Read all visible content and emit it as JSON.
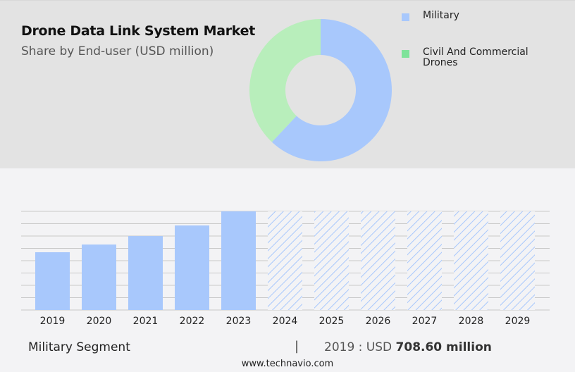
{
  "header": {
    "title": "Drone Data Link System Market",
    "subtitle": "Share by End-user (USD million)"
  },
  "legend": {
    "items": [
      {
        "label": "Military",
        "color": "#a8c8fc"
      },
      {
        "label": "Civil And Commercial Drones",
        "label_line1": "Civil And Commercial",
        "label_line2": "Drones",
        "color": "#7ee39a"
      }
    ]
  },
  "footer": {
    "segment_label": "Military Segment",
    "separator": "|",
    "value_prefix": "2019 : USD ",
    "value_bold": "708.60 million",
    "url": "www.technavio.com"
  },
  "colors": {
    "military": "#a8c8fc",
    "civil": "#b8eebb",
    "civil_legend": "#7ee39a",
    "top_bg": "#e3e3e3",
    "bottom_bg": "#f3f3f5",
    "gridline": "#c8c8c8"
  },
  "chart_data": [
    {
      "type": "pie",
      "title": "Drone Data Link System Market",
      "subtitle": "Share by End-user (USD million)",
      "donut": true,
      "categories": [
        "Military",
        "Civil And Commercial Drones"
      ],
      "values": [
        62,
        38
      ],
      "unit": "percent (estimated)",
      "legend_position": "right"
    },
    {
      "type": "bar",
      "title": "Military Segment",
      "categories": [
        "2019",
        "2020",
        "2021",
        "2022",
        "2023",
        "2024",
        "2025",
        "2026",
        "2027",
        "2028",
        "2029"
      ],
      "values": [
        708.6,
        803,
        907,
        1037,
        1210,
        null,
        null,
        null,
        null,
        null,
        null
      ],
      "forecast_years": [
        "2024",
        "2025",
        "2026",
        "2027",
        "2028",
        "2029"
      ],
      "forecast_style": "hatched, full height (values not shown)",
      "xlabel": "",
      "ylabel": "USD million",
      "grid": true,
      "annotation": "2019 : USD 708.60 million"
    }
  ]
}
